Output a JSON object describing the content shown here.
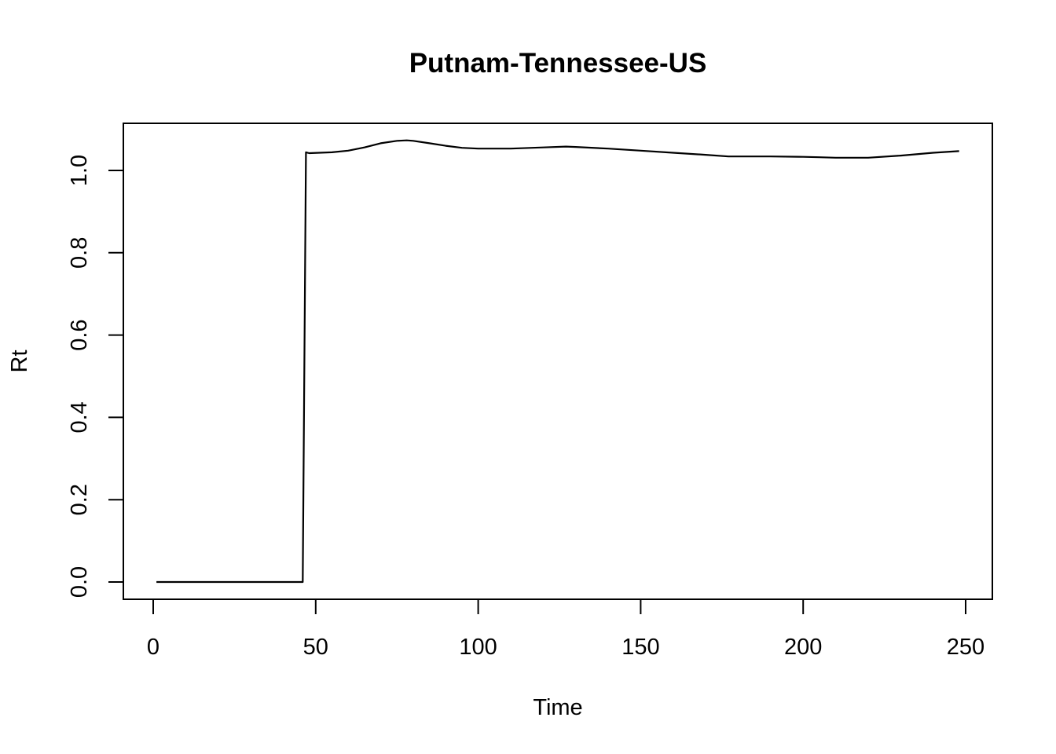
{
  "chart_data": {
    "type": "line",
    "title": "Putnam-Tennessee-US",
    "xlabel": "Time",
    "ylabel": "Rt",
    "xlim": [
      0,
      250
    ],
    "ylim": [
      0,
      1.05
    ],
    "xticks": [
      0,
      50,
      100,
      150,
      200,
      250
    ],
    "yticks": [
      0.0,
      0.2,
      0.4,
      0.6,
      0.8,
      1.0
    ],
    "xtick_labels": [
      "0",
      "50",
      "100",
      "150",
      "200",
      "250"
    ],
    "ytick_labels": [
      "0.0",
      "0.2",
      "0.4",
      "0.6",
      "0.8",
      "1.0"
    ],
    "grid": false,
    "legend": "none",
    "series": [
      {
        "color": "#000000",
        "x": [
          1,
          46,
          47,
          48,
          55,
          60,
          65,
          70,
          75,
          78,
          80,
          85,
          90,
          95,
          100,
          110,
          120,
          127,
          130,
          140,
          150,
          160,
          170,
          177,
          190,
          200,
          205,
          210,
          220,
          230,
          240,
          248
        ],
        "values": [
          0.0,
          0.0,
          1.044,
          1.042,
          1.044,
          1.048,
          1.056,
          1.066,
          1.072,
          1.073,
          1.072,
          1.066,
          1.06,
          1.055,
          1.053,
          1.053,
          1.056,
          1.058,
          1.057,
          1.053,
          1.048,
          1.043,
          1.038,
          1.034,
          1.034,
          1.033,
          1.032,
          1.031,
          1.031,
          1.036,
          1.043,
          1.047
        ]
      }
    ]
  }
}
